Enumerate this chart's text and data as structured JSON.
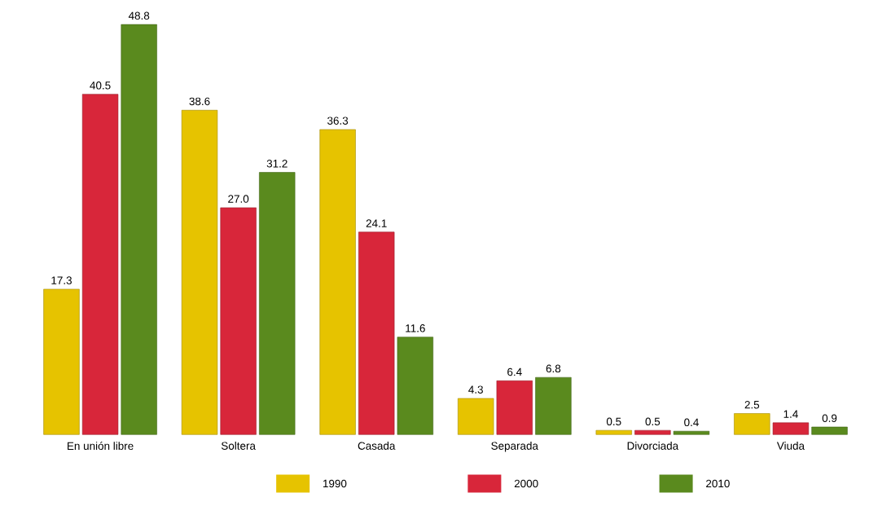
{
  "chart_data": {
    "type": "bar",
    "categories": [
      "En unión libre",
      "Soltera",
      "Casada",
      "Separada",
      "Divorciada",
      "Viuda"
    ],
    "series": [
      {
        "name": "1990",
        "color": "#e6c300",
        "values": [
          17.3,
          38.6,
          36.3,
          4.3,
          0.5,
          2.5
        ],
        "value_labels": [
          "17.3",
          "38.6",
          "36.3",
          "4.3",
          "0.5",
          "2.5"
        ]
      },
      {
        "name": "2000",
        "color": "#d8263a",
        "values": [
          40.5,
          27.0,
          24.1,
          6.4,
          0.5,
          1.4
        ],
        "value_labels": [
          "40.5",
          "27.0",
          "24.1",
          "6.4",
          "0.5",
          "1.4"
        ]
      },
      {
        "name": "2010",
        "color": "#5a8a1e",
        "values": [
          48.8,
          31.2,
          11.6,
          6.8,
          0.4,
          0.9
        ],
        "value_labels": [
          "48.8",
          "31.2",
          "11.6",
          "6.8",
          "0.4",
          "0.9"
        ]
      }
    ],
    "legend": "bottom"
  }
}
